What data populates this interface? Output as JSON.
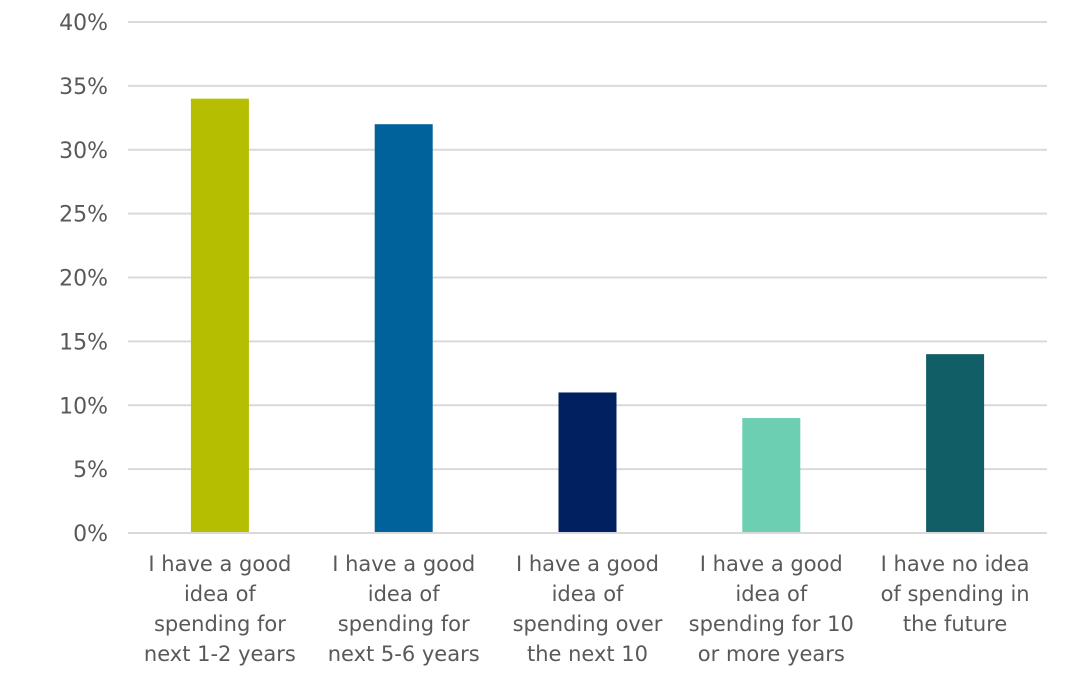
{
  "chart_data": {
    "type": "bar",
    "title": "",
    "xlabel": "",
    "ylabel": "",
    "ylim": [
      0,
      40
    ],
    "yticks": [
      0,
      5,
      10,
      15,
      20,
      25,
      30,
      35,
      40
    ],
    "ytick_labels": [
      "0%",
      "5%",
      "10%",
      "15%",
      "20%",
      "25%",
      "30%",
      "35%",
      "40%"
    ],
    "grid": true,
    "categories": [
      "I have a good idea of spending for next 1-2 years",
      "I have a good idea of spending for next 5-6 years",
      "I have a good idea of spending over the next 10",
      "I have a good idea of spending for 10 or more years",
      "I have no idea of spending in the future"
    ],
    "category_lines": [
      [
        "I have a good",
        "idea of",
        "spending for",
        "next 1-2 years"
      ],
      [
        "I have a good",
        "idea of",
        "spending for",
        "next 5-6 years"
      ],
      [
        "I have a good",
        "idea of",
        "spending over",
        "the next 10"
      ],
      [
        "I have a good",
        "idea of",
        "spending for 10",
        "or more years"
      ],
      [
        "I have no idea",
        "of spending in",
        "the future"
      ]
    ],
    "values": [
      34,
      32,
      11,
      9,
      14
    ],
    "colors": [
      "#b5be00",
      "#00629b",
      "#002060",
      "#6dcfb2",
      "#125e66"
    ]
  }
}
